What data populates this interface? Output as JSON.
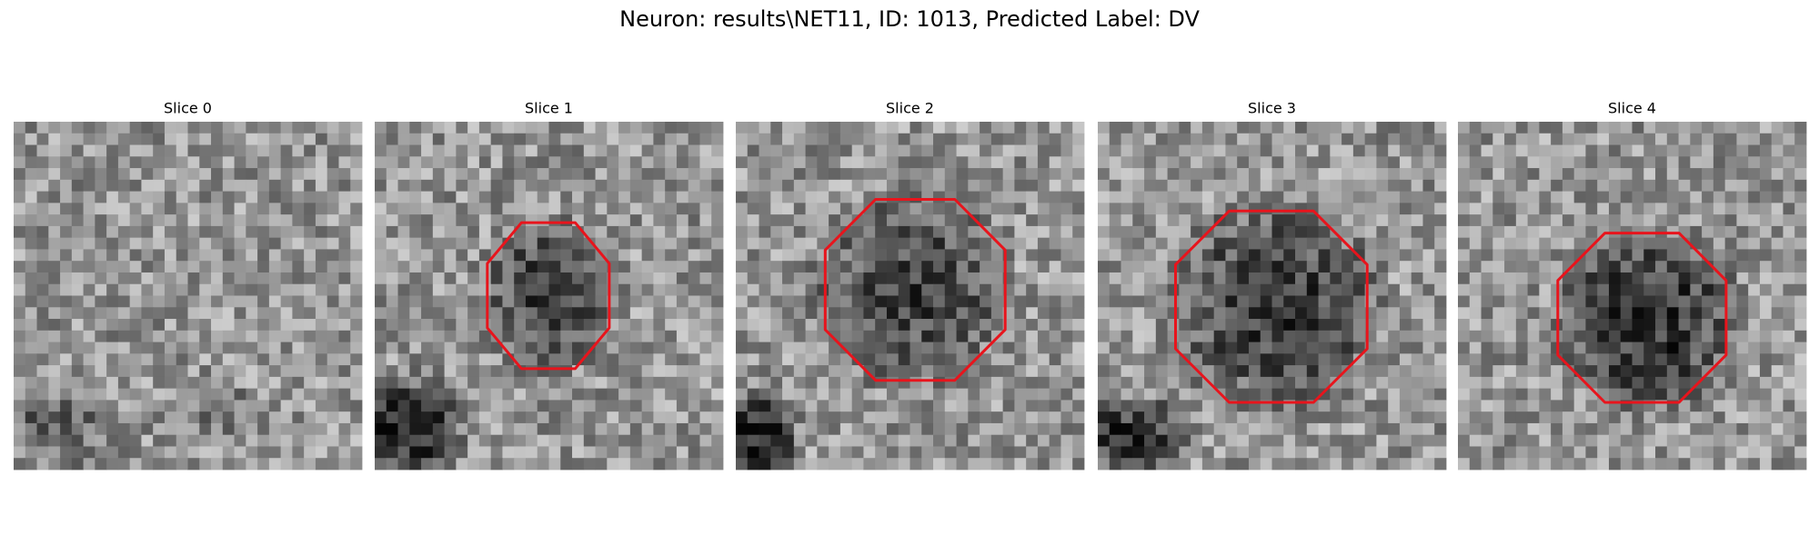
{
  "title": "Neuron: results\\NET11, ID: 1013, Predicted Label: DV",
  "panels": [
    {
      "title": "Slice 0"
    },
    {
      "title": "Slice 1"
    },
    {
      "title": "Slice 2"
    },
    {
      "title": "Slice 3"
    },
    {
      "title": "Slice 4"
    }
  ]
}
